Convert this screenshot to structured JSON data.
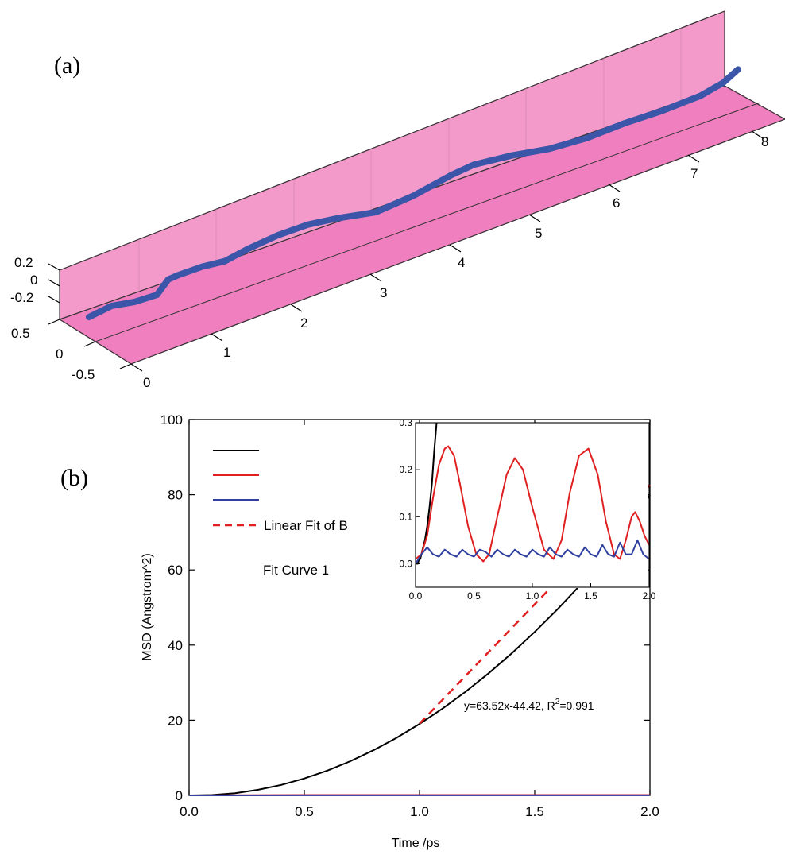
{
  "chart_data": [
    {
      "panel_label": "(a)",
      "type": "line",
      "projection": "3d",
      "box_color": "#f07fbf",
      "curve_color": "#3b55a8",
      "x_ticks": [
        "0",
        "1",
        "2",
        "3",
        "4",
        "5",
        "6",
        "7",
        "8"
      ],
      "y_ticks": [
        "0.5",
        "0",
        "-0.5"
      ],
      "z_ticks": [
        "0.2",
        "0",
        "-0.2"
      ],
      "xlim": [
        0,
        8.6
      ],
      "ylim": [
        -0.5,
        0.5
      ],
      "zlim": [
        -0.3,
        0.3
      ],
      "series": [
        {
          "x": [
            0.0,
            0.3,
            0.6,
            0.9,
            1.05,
            1.2,
            1.5,
            1.8,
            2.1,
            2.5,
            2.9,
            3.3,
            3.8,
            4.3,
            4.8,
            5.1,
            5.6,
            6.1,
            6.6,
            7.1,
            7.6,
            8.1,
            8.4,
            8.6
          ],
          "y": [
            0,
            0,
            0,
            0,
            0,
            0,
            0,
            0,
            0,
            0,
            0,
            0,
            0,
            0,
            0,
            0,
            0,
            0,
            0,
            0,
            0,
            0,
            0,
            0
          ],
          "z": [
            -0.02,
            0.02,
            -0.03,
            -0.04,
            0.1,
            0.11,
            0.11,
            0.08,
            0.13,
            0.17,
            0.17,
            0.12,
            0.03,
            0.07,
            0.16,
            0.19,
            0.14,
            0.06,
            0.03,
            0.05,
            0.04,
            0.06,
            0.12,
            0.22
          ]
        }
      ]
    },
    {
      "panel_label": "(b)",
      "type": "line",
      "xlabel": "Time /ps",
      "ylabel": "MSD (Angstrom^2)",
      "xlim": [
        0,
        2.0
      ],
      "ylim": [
        0,
        100
      ],
      "x_ticks": [
        "0.0",
        "0.5",
        "1.0",
        "1.5",
        "2.0"
      ],
      "y_ticks": [
        "0",
        "20",
        "40",
        "60",
        "80",
        "100"
      ],
      "legend_position": "top-left",
      "series": [
        {
          "name": "",
          "color": "#000000",
          "style": "solid",
          "x": [
            0,
            0.1,
            0.2,
            0.3,
            0.4,
            0.5,
            0.6,
            0.7,
            0.8,
            0.9,
            1.0,
            1.1,
            1.2,
            1.3,
            1.4,
            1.5,
            1.6,
            1.7,
            1.8,
            1.9,
            2.0
          ],
          "y": [
            0,
            0.1,
            0.6,
            1.5,
            2.8,
            4.5,
            6.6,
            9.1,
            12,
            15.3,
            19,
            23.1,
            27.6,
            32.5,
            37.8,
            43.5,
            49.6,
            56.1,
            63,
            70.3,
            80
          ]
        },
        {
          "name": "",
          "color": "#e02020",
          "style": "solid",
          "x": [
            0,
            0.5,
            1.0,
            1.5,
            2.0
          ],
          "y": [
            0,
            0.1,
            0.1,
            0.1,
            0.1
          ]
        },
        {
          "name": "",
          "color": "#3040a0",
          "style": "solid",
          "x": [
            0,
            0.5,
            1.0,
            1.5,
            2.0
          ],
          "y": [
            0,
            0.03,
            0.03,
            0.03,
            0.03
          ]
        },
        {
          "name": "Linear Fit of B",
          "color": "#e02020",
          "style": "dashed",
          "x": [
            1.0,
            2.0
          ],
          "y": [
            19.1,
            82.62
          ]
        }
      ],
      "legend_extra": "Fit Curve 1",
      "annotation": {
        "text": "y=63.52x-44.42, R",
        "sup": "2",
        "tail": "=0.991"
      },
      "inset": {
        "xlim": [
          0,
          2.0
        ],
        "ylim": [
          -0.05,
          0.3
        ],
        "x_ticks": [
          "0.0",
          "0.5",
          "1.0",
          "1.5",
          "2.0"
        ],
        "y_ticks": [
          "0.0",
          "0.1",
          "0.2",
          "0.3"
        ],
        "series": [
          {
            "color": "#000000",
            "x": [
              0,
              0.01,
              0.02,
              0.03,
              0.04,
              0.05,
              0.06,
              0.08,
              0.1,
              0.12,
              0.14,
              0.16,
              0.18
            ],
            "y": [
              0,
              0.0,
              0.0,
              0.01,
              0.01,
              0.02,
              0.03,
              0.05,
              0.08,
              0.12,
              0.17,
              0.24,
              0.3
            ]
          },
          {
            "color": "#e02020",
            "x": [
              0,
              0.05,
              0.1,
              0.15,
              0.2,
              0.25,
              0.28,
              0.33,
              0.38,
              0.45,
              0.52,
              0.58,
              0.63,
              0.7,
              0.78,
              0.85,
              0.92,
              1.0,
              1.1,
              1.18,
              1.25,
              1.32,
              1.4,
              1.48,
              1.56,
              1.63,
              1.7,
              1.75,
              1.8,
              1.85,
              1.88,
              1.92,
              1.96,
              2.0
            ],
            "y": [
              0.01,
              0.02,
              0.06,
              0.14,
              0.21,
              0.245,
              0.25,
              0.23,
              0.17,
              0.08,
              0.02,
              0.005,
              0.02,
              0.1,
              0.19,
              0.225,
              0.2,
              0.12,
              0.03,
              0.01,
              0.05,
              0.15,
              0.23,
              0.245,
              0.19,
              0.09,
              0.02,
              0.01,
              0.05,
              0.1,
              0.11,
              0.09,
              0.06,
              0.04
            ]
          },
          {
            "color": "#3040a0",
            "x": [
              0,
              0.05,
              0.1,
              0.15,
              0.2,
              0.25,
              0.3,
              0.35,
              0.4,
              0.45,
              0.5,
              0.55,
              0.6,
              0.65,
              0.7,
              0.75,
              0.8,
              0.85,
              0.9,
              0.95,
              1.0,
              1.05,
              1.1,
              1.15,
              1.2,
              1.25,
              1.3,
              1.35,
              1.4,
              1.45,
              1.5,
              1.55,
              1.6,
              1.65,
              1.7,
              1.75,
              1.8,
              1.85,
              1.9,
              1.95,
              2.0
            ],
            "y": [
              0.0,
              0.02,
              0.035,
              0.02,
              0.015,
              0.03,
              0.02,
              0.015,
              0.03,
              0.02,
              0.015,
              0.03,
              0.025,
              0.015,
              0.03,
              0.02,
              0.015,
              0.03,
              0.02,
              0.015,
              0.03,
              0.02,
              0.015,
              0.035,
              0.02,
              0.015,
              0.03,
              0.02,
              0.015,
              0.035,
              0.02,
              0.015,
              0.04,
              0.02,
              0.015,
              0.045,
              0.02,
              0.02,
              0.05,
              0.02,
              0.01
            ]
          }
        ]
      }
    }
  ]
}
